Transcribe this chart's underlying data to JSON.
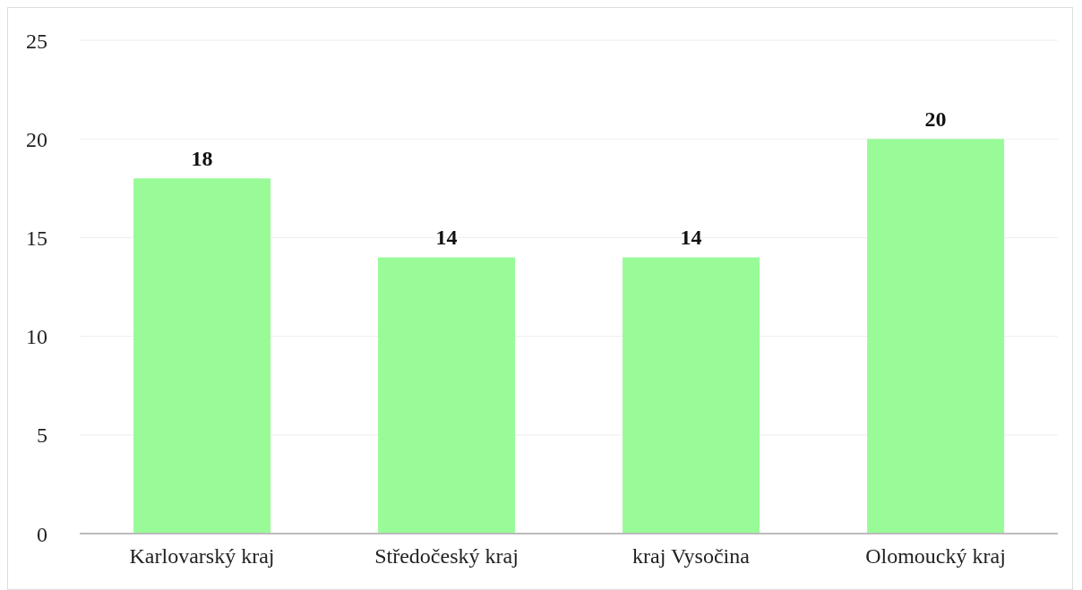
{
  "chart_data": {
    "type": "bar",
    "categories": [
      "Karlovarský kraj",
      "Středočeský kraj",
      "kraj Vysočina",
      "Olomoucký kraj"
    ],
    "values": [
      18,
      14,
      14,
      20
    ],
    "color": "#98fb98",
    "ylim": [
      0,
      25
    ],
    "yticks": [
      0,
      5,
      10,
      15,
      20,
      25
    ],
    "grid": "y",
    "data_labels": true
  }
}
